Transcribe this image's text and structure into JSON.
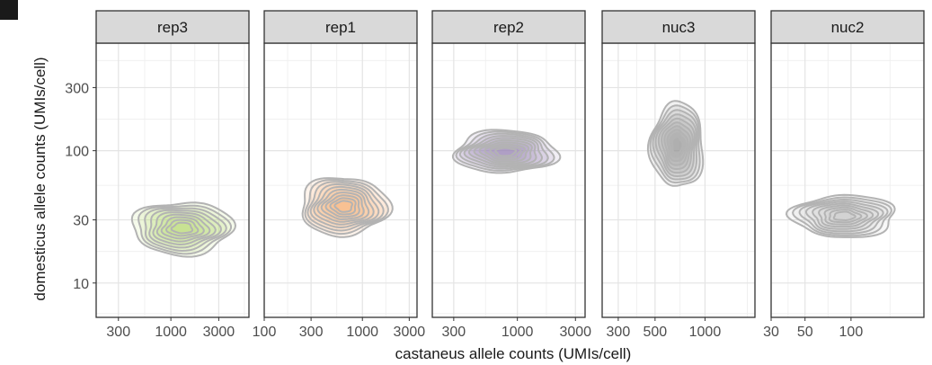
{
  "chart_data": {
    "type": "density_contour",
    "facets": [
      {
        "label": "rep3",
        "x_ticks": [
          "300",
          "1000",
          "3000"
        ],
        "x_tick_values": [
          300,
          1000,
          3000
        ],
        "xlim": [
          180,
          6000
        ],
        "fill": "#b8dd6e",
        "center": [
          1300,
          26
        ],
        "spread": [
          0.5,
          0.2
        ],
        "levels": 9
      },
      {
        "label": "rep1",
        "x_ticks": [
          "100",
          "300",
          "1000",
          "3000"
        ],
        "x_tick_values": [
          100,
          300,
          1000,
          3000
        ],
        "xlim": [
          100,
          3600
        ],
        "fill": "#f6b47a",
        "center": [
          650,
          38
        ],
        "spread": [
          0.45,
          0.22
        ],
        "levels": 10
      },
      {
        "label": "rep2",
        "x_ticks": [
          "300",
          "1000",
          "3000"
        ],
        "x_tick_values": [
          300,
          1000,
          3000
        ],
        "xlim": [
          200,
          3600
        ],
        "fill": "#9c86b8",
        "center": [
          800,
          98
        ],
        "spread": [
          0.42,
          0.16
        ],
        "levels": 10
      },
      {
        "label": "nuc3",
        "x_ticks": [
          "300",
          "500",
          "1000"
        ],
        "x_tick_values": [
          300,
          500,
          1000
        ],
        "xlim": [
          240,
          2000
        ],
        "fill": "#9a9a9a",
        "center": [
          680,
          110
        ],
        "spread": [
          0.16,
          0.32
        ],
        "levels": 10
      },
      {
        "label": "nuc2",
        "x_ticks": [
          "30",
          "50",
          "100"
        ],
        "x_tick_values": [
          30,
          50,
          100
        ],
        "xlim": [
          30,
          300
        ],
        "fill": "#c4c4c4",
        "center": [
          90,
          32
        ],
        "spread": [
          0.34,
          0.16
        ],
        "levels": 9
      }
    ],
    "y_ticks": [
      "10",
      "30",
      "100",
      "300"
    ],
    "y_tick_values": [
      10,
      30,
      100,
      300
    ],
    "ylim": [
      5.5,
      650
    ],
    "x_scale": "log10",
    "y_scale": "log10",
    "xlabel": "castaneus allele counts (UMIs/cell)",
    "ylabel": "domesticus allele counts (UMIs/cell)",
    "grid": true
  }
}
